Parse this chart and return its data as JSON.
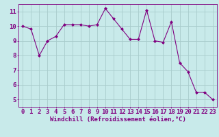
{
  "x": [
    0,
    1,
    2,
    3,
    4,
    5,
    6,
    7,
    8,
    9,
    10,
    11,
    12,
    13,
    14,
    15,
    16,
    17,
    18,
    19,
    20,
    21,
    22,
    23
  ],
  "y": [
    10.0,
    9.8,
    8.0,
    9.0,
    9.3,
    10.1,
    10.1,
    10.1,
    10.0,
    10.1,
    11.2,
    10.5,
    9.8,
    9.1,
    9.1,
    11.1,
    9.0,
    8.9,
    10.3,
    7.5,
    6.9,
    5.5,
    5.5,
    5.0
  ],
  "line_color": "#800080",
  "marker": "D",
  "marker_size": 2,
  "bg_color": "#c8eaea",
  "grid_color": "#a8cccc",
  "xlabel": "Windchill (Refroidissement éolien,°C)",
  "xlim": [
    -0.5,
    23.5
  ],
  "ylim": [
    4.5,
    11.5
  ],
  "yticks": [
    5,
    6,
    7,
    8,
    9,
    10,
    11
  ],
  "xticks": [
    0,
    1,
    2,
    3,
    4,
    5,
    6,
    7,
    8,
    9,
    10,
    11,
    12,
    13,
    14,
    15,
    16,
    17,
    18,
    19,
    20,
    21,
    22,
    23
  ],
  "tick_label_color": "#800080",
  "axis_color": "#800080",
  "xlabel_fontsize": 6.5,
  "tick_fontsize": 6.5
}
